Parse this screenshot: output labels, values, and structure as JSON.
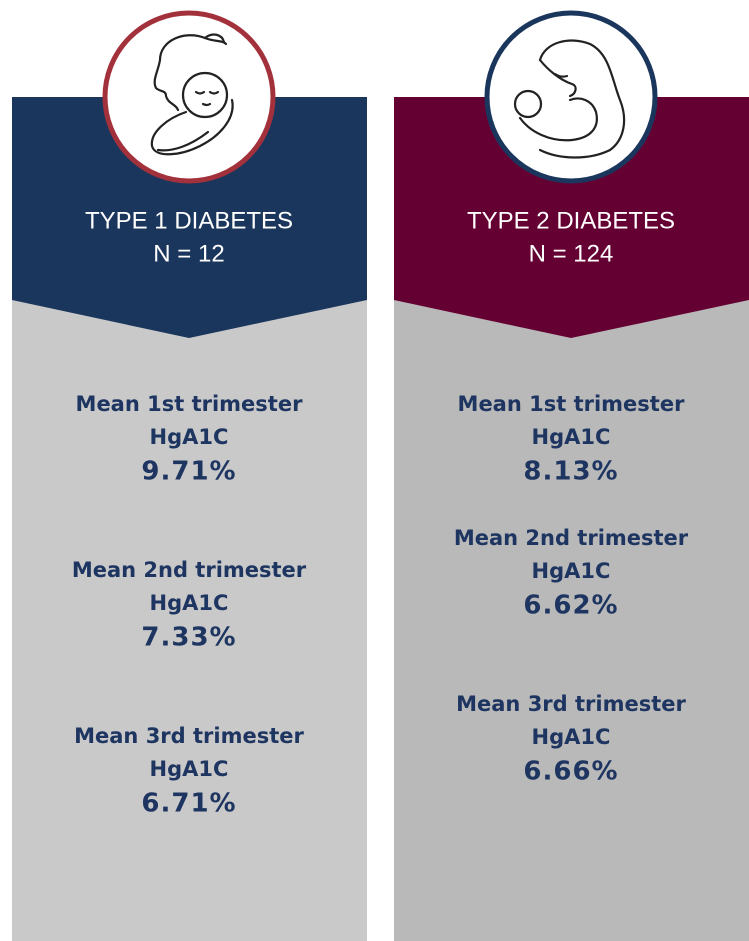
{
  "panels": [
    {
      "title": "TYPE 1 DIABETES",
      "n": "N = 12",
      "stats": [
        {
          "label": "Mean 1st trimester",
          "measure": "HgA1C",
          "value": "9.71%"
        },
        {
          "label": "Mean 2nd trimester",
          "measure": "HgA1C",
          "value": "7.33%"
        },
        {
          "label": "Mean 3rd trimester",
          "measure": "HgA1C",
          "value": "6.71%"
        }
      ]
    },
    {
      "title": "TYPE 2 DIABETES",
      "n": "N = 124",
      "stats": [
        {
          "label": "Mean 1st trimester",
          "measure": "HgA1C",
          "value": "8.13%"
        },
        {
          "label": "Mean 2nd trimester",
          "measure": "HgA1C",
          "value": "6.62%"
        },
        {
          "label": "Mean 3rd trimester",
          "measure": "HgA1C",
          "value": "6.66%"
        }
      ]
    }
  ]
}
